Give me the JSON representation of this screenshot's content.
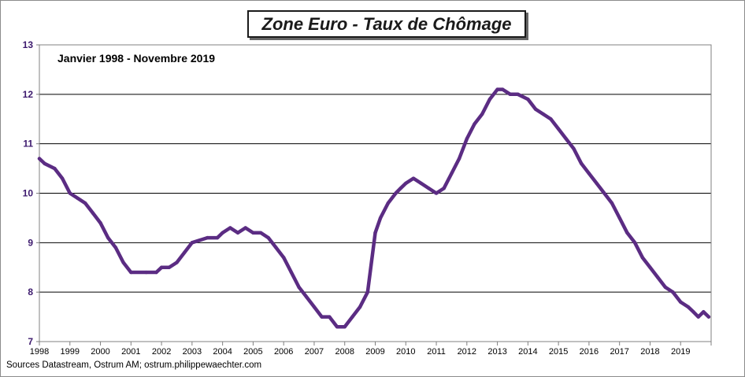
{
  "chart_data": {
    "type": "line",
    "title": "Zone Euro - Taux de Chômage",
    "subtitle": "Janvier 1998 - Novembre 2019",
    "source": "Sources Datastream, Ostrum AM;   ostrum.philippewaechter.com",
    "xlabel": "",
    "ylabel": "",
    "ylim": [
      7,
      13
    ],
    "xlim": [
      1998.0,
      2020.0
    ],
    "y_ticks": [
      "13",
      "12",
      "11",
      "10",
      "9",
      "8",
      "7"
    ],
    "x_ticks": [
      "1998",
      "1999",
      "2000",
      "2001",
      "2002",
      "2003",
      "2004",
      "2005",
      "2006",
      "2007",
      "2008",
      "2009",
      "2010",
      "2011",
      "2012",
      "2013",
      "2014",
      "2015",
      "2016",
      "2017",
      "2018",
      "2019"
    ],
    "grid": true,
    "line_color": "#5b2c83",
    "series": [
      {
        "x": [
          1998.0,
          1998.17,
          1998.5,
          1998.75,
          1999.0,
          1999.25,
          1999.5,
          1999.75,
          2000.0,
          2000.25,
          2000.5,
          2000.75,
          2001.0,
          2001.5,
          2001.83,
          2002.0,
          2002.25,
          2002.5,
          2002.75,
          2003.0,
          2003.5,
          2003.83,
          2004.0,
          2004.25,
          2004.5,
          2004.75,
          2005.0,
          2005.25,
          2005.5,
          2005.75,
          2006.0,
          2006.25,
          2006.5,
          2006.75,
          2007.0,
          2007.25,
          2007.5,
          2007.75,
          2008.0,
          2008.25,
          2008.5,
          2008.75,
          2009.0,
          2009.17,
          2009.42,
          2009.67,
          2009.83,
          2010.0,
          2010.25,
          2010.5,
          2010.75,
          2011.0,
          2011.25,
          2011.5,
          2011.75,
          2012.0,
          2012.25,
          2012.5,
          2012.75,
          2013.0,
          2013.17,
          2013.42,
          2013.67,
          2014.0,
          2014.25,
          2014.5,
          2014.75,
          2015.0,
          2015.25,
          2015.5,
          2015.75,
          2016.0,
          2016.25,
          2016.5,
          2016.75,
          2017.0,
          2017.25,
          2017.5,
          2017.75,
          2018.0,
          2018.25,
          2018.5,
          2018.75,
          2019.0,
          2019.25,
          2019.42,
          2019.58,
          2019.75,
          2019.92
        ],
        "values": [
          10.7,
          10.6,
          10.5,
          10.3,
          10.0,
          9.9,
          9.8,
          9.6,
          9.4,
          9.1,
          8.9,
          8.6,
          8.4,
          8.4,
          8.4,
          8.5,
          8.5,
          8.6,
          8.8,
          9.0,
          9.1,
          9.1,
          9.2,
          9.3,
          9.2,
          9.3,
          9.2,
          9.2,
          9.1,
          8.9,
          8.7,
          8.4,
          8.1,
          7.9,
          7.7,
          7.5,
          7.5,
          7.3,
          7.3,
          7.5,
          7.7,
          8.0,
          9.2,
          9.5,
          9.8,
          10.0,
          10.1,
          10.2,
          10.3,
          10.2,
          10.1,
          10.0,
          10.1,
          10.4,
          10.7,
          11.1,
          11.4,
          11.6,
          11.9,
          12.1,
          12.1,
          12.0,
          12.0,
          11.9,
          11.7,
          11.6,
          11.5,
          11.3,
          11.1,
          10.9,
          10.6,
          10.4,
          10.2,
          10.0,
          9.8,
          9.5,
          9.2,
          9.0,
          8.7,
          8.5,
          8.3,
          8.1,
          8.0,
          7.8,
          7.7,
          7.6,
          7.5,
          7.6,
          7.5
        ]
      }
    ]
  }
}
